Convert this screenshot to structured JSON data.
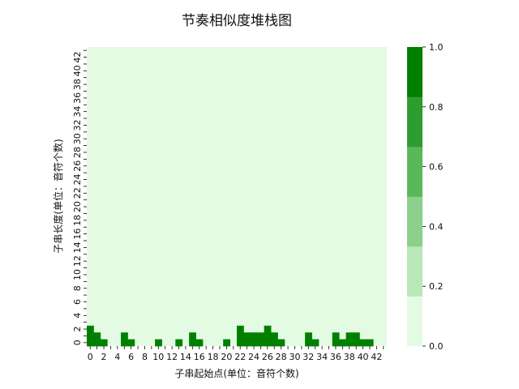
{
  "chart_data": {
    "type": "heatmap",
    "title": "节奏相似度堆栈图",
    "xlabel": "子串起始点(单位：音符个数)",
    "ylabel": "子串长度(单位：音符个数)",
    "x_tick_labels": [
      "0",
      "2",
      "4",
      "6",
      "8",
      "10",
      "12",
      "14",
      "16",
      "18",
      "20",
      "22",
      "24",
      "26",
      "28",
      "30",
      "32",
      "34",
      "36",
      "38",
      "40",
      "42"
    ],
    "y_tick_labels": [
      "0",
      "2",
      "4",
      "6",
      "8",
      "10",
      "12",
      "14",
      "16",
      "18",
      "20",
      "22",
      "24",
      "26",
      "28",
      "30",
      "32",
      "34",
      "36",
      "38",
      "40",
      "42"
    ],
    "n_cols": 44,
    "n_rows": 44,
    "column_stack_heights": [
      3,
      2,
      1,
      0,
      0,
      2,
      1,
      0,
      0,
      0,
      1,
      0,
      0,
      1,
      0,
      2,
      1,
      0,
      0,
      0,
      1,
      0,
      3,
      2,
      2,
      2,
      3,
      2,
      1,
      0,
      0,
      0,
      2,
      1,
      0,
      0,
      2,
      1,
      2,
      2,
      1,
      1,
      0,
      0
    ],
    "stack_value": 1.0,
    "background_value": 0.0,
    "colorbar": {
      "ticks": [
        "0.0",
        "0.2",
        "0.4",
        "0.6",
        "0.8",
        "1.0"
      ],
      "range": [
        0,
        1
      ],
      "colors": [
        "#e3fbe3",
        "#b9e7b9",
        "#8cd08c",
        "#5ab85a",
        "#2f9c2f",
        "#008000"
      ]
    }
  }
}
